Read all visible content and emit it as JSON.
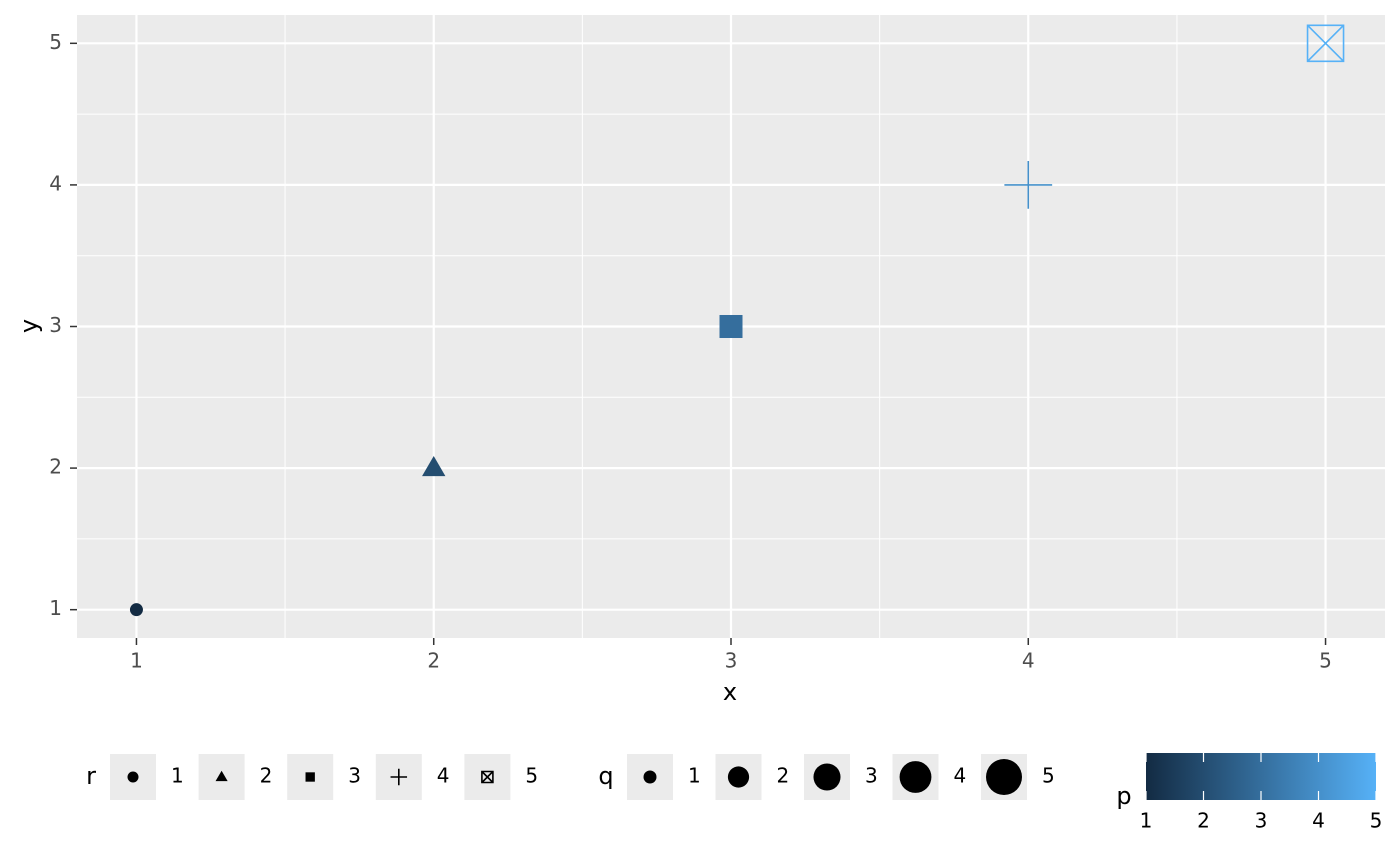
{
  "chart_data": {
    "type": "scatter",
    "xlabel": "x",
    "ylabel": "y",
    "x": [
      1,
      2,
      3,
      4,
      5
    ],
    "y": [
      1,
      2,
      3,
      4,
      5
    ],
    "p": [
      1,
      2,
      3,
      4,
      5
    ],
    "q": [
      1,
      2,
      3,
      4,
      5
    ],
    "r": [
      1,
      2,
      3,
      4,
      5
    ],
    "xlim": [
      0.8,
      5.2
    ],
    "ylim": [
      0.8,
      5.2
    ],
    "xticks": [
      1,
      2,
      3,
      4,
      5
    ],
    "yticks": [
      1,
      2,
      3,
      4,
      5
    ],
    "grid": true,
    "shape_legend": {
      "title": "r",
      "labels": [
        1,
        2,
        3,
        4,
        5
      ]
    },
    "size_legend": {
      "title": "q",
      "labels": [
        1,
        2,
        3,
        4,
        5
      ]
    },
    "color_legend": {
      "title": "p",
      "lim": [
        1,
        5
      ],
      "ticks": [
        1,
        2,
        3,
        4,
        5
      ],
      "colors": [
        "#132B43",
        "#56B1F7"
      ]
    }
  }
}
